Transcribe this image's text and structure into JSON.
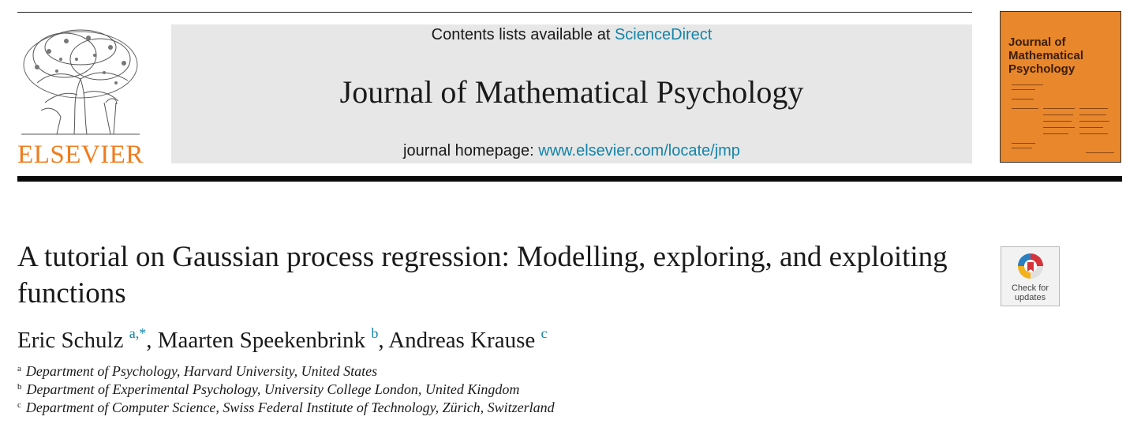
{
  "publisher": {
    "logo_label": "ELSEVIER",
    "brand_color": "#f07c1c"
  },
  "header": {
    "contents_prefix": "Contents lists available at ",
    "contents_link": "ScienceDirect",
    "journal_title": "Journal of Mathematical Psychology",
    "homepage_prefix": "journal homepage: ",
    "homepage_link": "www.elsevier.com/locate/jmp",
    "link_color": "#1484a8",
    "band_color": "#e7e7e7"
  },
  "cover": {
    "title": "Journal of Mathematical Psychology",
    "background_color": "#e8872c"
  },
  "badge": {
    "label": "Check for updates",
    "icon": "check-for-updates-icon"
  },
  "article": {
    "title": "A tutorial on Gaussian process regression: Modelling, exploring, and exploiting functions",
    "authors": [
      {
        "name": "Eric Schulz",
        "marks": "a,*",
        "separator": ", "
      },
      {
        "name": "Maarten Speekenbrink",
        "marks": "b",
        "separator": ", "
      },
      {
        "name": "Andreas Krause",
        "marks": "c",
        "separator": ""
      }
    ],
    "affiliations": [
      {
        "mark": "a",
        "text": "Department of Psychology, Harvard University, United States"
      },
      {
        "mark": "b",
        "text": "Department of Experimental Psychology, University College London, United Kingdom"
      },
      {
        "mark": "c",
        "text": "Department of Computer Science, Swiss Federal Institute of Technology, Zürich, Switzerland"
      }
    ]
  }
}
